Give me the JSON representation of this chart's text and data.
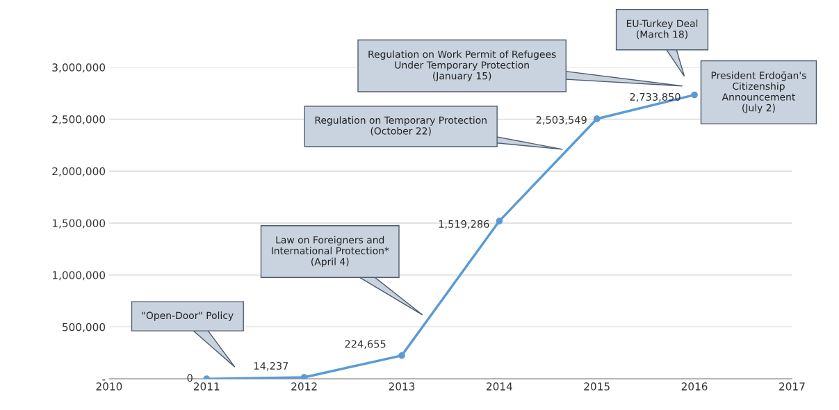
{
  "chart_data": {
    "type": "line",
    "x": [
      2011,
      2012,
      2013,
      2014,
      2015,
      2016
    ],
    "series": [
      {
        "color": "#5b9bd5",
        "values": [
          0,
          14237,
          224655,
          1519286,
          2503549,
          2733850
        ],
        "value_labels": [
          "0",
          "14,237",
          "224,655",
          "1,519,286",
          "2,503,549",
          "2,733,850"
        ]
      }
    ],
    "xlim": [
      2010,
      2017
    ],
    "xticks": [
      2010,
      2011,
      2012,
      2013,
      2014,
      2015,
      2016,
      2017
    ],
    "ylim": [
      0,
      3000000
    ],
    "yticks": [
      {
        "value": 0,
        "label": "-"
      },
      {
        "value": 500000,
        "label": "500,000"
      },
      {
        "value": 1000000,
        "label": "1,000,000"
      },
      {
        "value": 1500000,
        "label": "1,500,000"
      },
      {
        "value": 2000000,
        "label": "2,000,000"
      },
      {
        "value": 2500000,
        "label": "2,500,000"
      },
      {
        "value": 3000000,
        "label": "3,000,000"
      }
    ],
    "grid": "y",
    "marker": "circle",
    "line_style": "solid",
    "legend": false,
    "annotations": [
      "\"Open-Door\" Policy",
      "Law on Foreigners and\nInternational Protection*\n(April 4)",
      "Regulation on Temporary Protection\n(October 22)",
      "Regulation on Work Permit of Refugees\nUnder Temporary Protection\n(January 15)",
      "EU-Turkey Deal\n(March 18)",
      "President Erdoğan's\nCitizenship\nAnnouncement\n(July 2)"
    ]
  }
}
